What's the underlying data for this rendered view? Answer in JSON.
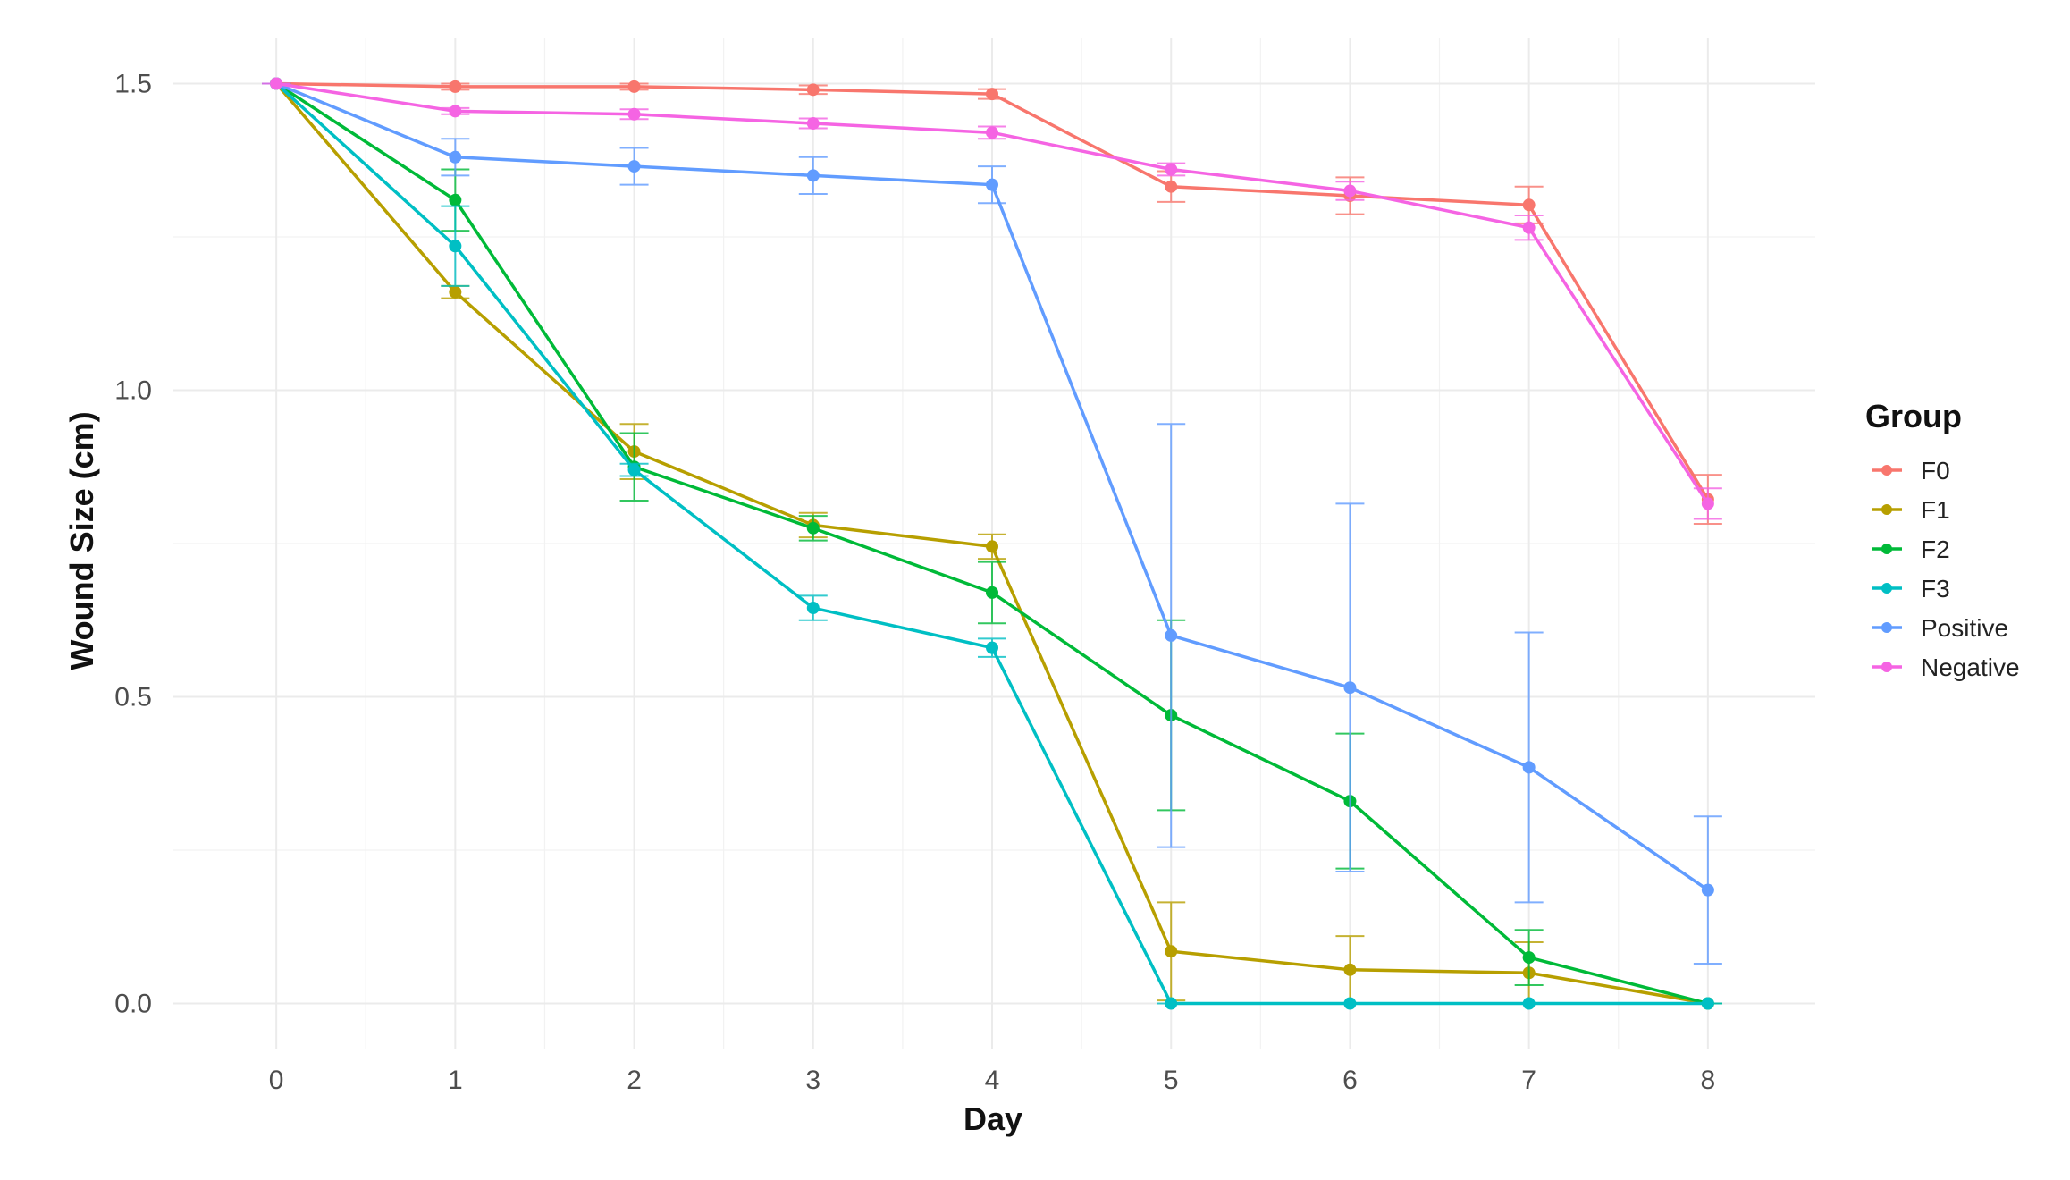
{
  "chart_data": {
    "type": "line",
    "x_label": "Day",
    "y_label": "Wound Size (cm)",
    "legend_title": "Group",
    "x": [
      0,
      1,
      2,
      3,
      4,
      5,
      6,
      7,
      8
    ],
    "xlim": [
      -0.58,
      8.6
    ],
    "xticks": [
      0,
      1,
      2,
      3,
      4,
      5,
      6,
      7,
      8
    ],
    "ylim": [
      -0.075,
      1.575
    ],
    "yticks": [
      {
        "value": 0,
        "label": "0.0"
      },
      0.5,
      {
        "value": 1,
        "label": "1.0"
      },
      1.5
    ],
    "grid": true,
    "legend": "right",
    "series": [
      {
        "name": "F0",
        "color": "#F8766D",
        "values": [
          1.5,
          1.495,
          1.495,
          1.49,
          1.483,
          1.332,
          1.317,
          1.302,
          0.822
        ],
        "errors": [
          0,
          0.005,
          0.005,
          0.007,
          0.008,
          0.025,
          0.03,
          0.03,
          0.04
        ]
      },
      {
        "name": "F1",
        "color": "#B79F00",
        "values": [
          1.5,
          1.16,
          0.9,
          0.78,
          0.745,
          0.085,
          0.055,
          0.05,
          0.0
        ],
        "errors": [
          0,
          0.01,
          0.045,
          0.02,
          0.02,
          0.08,
          0.055,
          0.05,
          0
        ]
      },
      {
        "name": "F2",
        "color": "#00BA38",
        "values": [
          1.5,
          1.31,
          0.875,
          0.775,
          0.67,
          0.47,
          0.33,
          0.075,
          0.0
        ],
        "errors": [
          0,
          0.05,
          0.055,
          0.02,
          0.05,
          0.155,
          0.11,
          0.045,
          0
        ]
      },
      {
        "name": "F3",
        "color": "#00BFC4",
        "values": [
          1.5,
          1.235,
          0.87,
          0.645,
          0.58,
          0.0,
          0.0,
          0.0,
          0.0
        ],
        "errors": [
          0,
          0.065,
          0.01,
          0.02,
          0.015,
          0,
          0,
          0,
          0
        ]
      },
      {
        "name": "Positive",
        "color": "#619CFF",
        "values": [
          1.5,
          1.38,
          1.365,
          1.35,
          1.335,
          0.6,
          0.515,
          0.385,
          0.185
        ],
        "errors": [
          0,
          0.03,
          0.03,
          0.03,
          0.03,
          0.345,
          0.3,
          0.22,
          0.12
        ]
      },
      {
        "name": "Negative",
        "color": "#F564E3",
        "values": [
          1.5,
          1.455,
          1.45,
          1.435,
          1.42,
          1.36,
          1.325,
          1.265,
          0.815
        ],
        "errors": [
          0,
          0.005,
          0.008,
          0.008,
          0.01,
          0.01,
          0.015,
          0.02,
          0.025
        ]
      }
    ]
  }
}
